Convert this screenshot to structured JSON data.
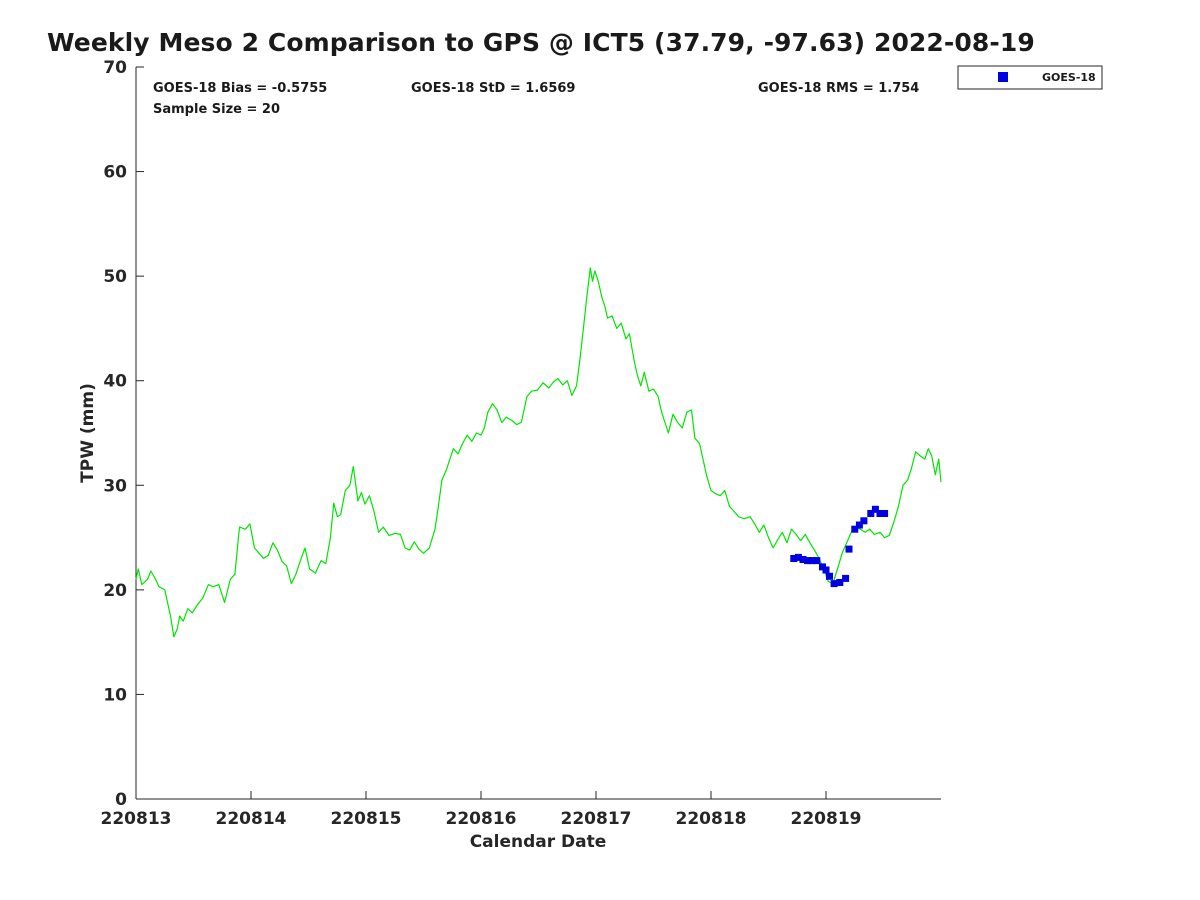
{
  "title": "Weekly Meso 2 Comparison to GPS @ ICT5 (37.79, -97.63) 2022-08-19",
  "stats": {
    "bias": "GOES-18 Bias = -0.5755",
    "std": "GOES-18 StD = 1.6569",
    "rms": "GOES-18 RMS = 1.754",
    "sample": "Sample Size = 20"
  },
  "legend": {
    "label": "GOES-18"
  },
  "colors": {
    "gps_line": "#00e600",
    "goes_marker": "#0000e0",
    "axis": "#262626"
  },
  "chart_data": {
    "type": "line",
    "xlabel": "Calendar Date",
    "ylabel": "TPW (mm)",
    "xlim": [
      0,
      7
    ],
    "ylim": [
      0,
      70
    ],
    "x_tick_values": [
      0,
      1,
      2,
      3,
      4,
      5,
      6
    ],
    "x_tick_labels": [
      "220813",
      "220814",
      "220815",
      "220816",
      "220817",
      "220818",
      "220819"
    ],
    "y_ticks": [
      0,
      10,
      20,
      30,
      40,
      50,
      60,
      70
    ],
    "grid": false,
    "legend_position": "top-right",
    "series": [
      {
        "marker": "line",
        "points": [
          [
            0.0,
            21.0
          ],
          [
            0.02,
            22.0
          ],
          [
            0.05,
            20.5
          ],
          [
            0.1,
            21.0
          ],
          [
            0.13,
            21.8
          ],
          [
            0.17,
            21.0
          ],
          [
            0.2,
            20.3
          ],
          [
            0.25,
            20.0
          ],
          [
            0.28,
            18.5
          ],
          [
            0.3,
            17.5
          ],
          [
            0.33,
            15.5
          ],
          [
            0.36,
            16.3
          ],
          [
            0.38,
            17.5
          ],
          [
            0.41,
            17.0
          ],
          [
            0.45,
            18.2
          ],
          [
            0.49,
            17.8
          ],
          [
            0.53,
            18.5
          ],
          [
            0.58,
            19.2
          ],
          [
            0.63,
            20.5
          ],
          [
            0.67,
            20.3
          ],
          [
            0.72,
            20.5
          ],
          [
            0.77,
            18.8
          ],
          [
            0.82,
            21.0
          ],
          [
            0.86,
            21.5
          ],
          [
            0.9,
            26.0
          ],
          [
            0.95,
            25.8
          ],
          [
            0.99,
            26.3
          ],
          [
            1.03,
            24.0
          ],
          [
            1.07,
            23.5
          ],
          [
            1.11,
            23.0
          ],
          [
            1.15,
            23.3
          ],
          [
            1.19,
            24.5
          ],
          [
            1.23,
            23.8
          ],
          [
            1.27,
            22.7
          ],
          [
            1.31,
            22.3
          ],
          [
            1.35,
            20.6
          ],
          [
            1.39,
            21.5
          ],
          [
            1.43,
            22.8
          ],
          [
            1.47,
            24.0
          ],
          [
            1.51,
            22.0
          ],
          [
            1.56,
            21.6
          ],
          [
            1.61,
            22.8
          ],
          [
            1.65,
            22.5
          ],
          [
            1.69,
            25.0
          ],
          [
            1.72,
            28.3
          ],
          [
            1.75,
            27.0
          ],
          [
            1.78,
            27.2
          ],
          [
            1.82,
            29.5
          ],
          [
            1.86,
            30.0
          ],
          [
            1.89,
            31.8
          ],
          [
            1.93,
            28.5
          ],
          [
            1.96,
            29.3
          ],
          [
            1.99,
            28.2
          ],
          [
            2.03,
            29.0
          ],
          [
            2.07,
            27.5
          ],
          [
            2.11,
            25.5
          ],
          [
            2.15,
            26.0
          ],
          [
            2.2,
            25.2
          ],
          [
            2.25,
            25.4
          ],
          [
            2.3,
            25.3
          ],
          [
            2.34,
            24.0
          ],
          [
            2.38,
            23.8
          ],
          [
            2.42,
            24.6
          ],
          [
            2.46,
            23.9
          ],
          [
            2.5,
            23.5
          ],
          [
            2.55,
            24.0
          ],
          [
            2.6,
            25.8
          ],
          [
            2.63,
            28.0
          ],
          [
            2.66,
            30.5
          ],
          [
            2.7,
            31.5
          ],
          [
            2.73,
            32.5
          ],
          [
            2.76,
            33.5
          ],
          [
            2.8,
            33.0
          ],
          [
            2.84,
            34.0
          ],
          [
            2.88,
            34.8
          ],
          [
            2.92,
            34.2
          ],
          [
            2.96,
            35.0
          ],
          [
            3.0,
            34.8
          ],
          [
            3.03,
            35.5
          ],
          [
            3.06,
            37.0
          ],
          [
            3.1,
            37.8
          ],
          [
            3.14,
            37.2
          ],
          [
            3.18,
            36.0
          ],
          [
            3.22,
            36.5
          ],
          [
            3.27,
            36.2
          ],
          [
            3.31,
            35.8
          ],
          [
            3.35,
            36.0
          ],
          [
            3.4,
            38.5
          ],
          [
            3.44,
            39.0
          ],
          [
            3.49,
            39.1
          ],
          [
            3.54,
            39.8
          ],
          [
            3.59,
            39.3
          ],
          [
            3.63,
            39.9
          ],
          [
            3.67,
            40.2
          ],
          [
            3.71,
            39.6
          ],
          [
            3.75,
            40.0
          ],
          [
            3.79,
            38.6
          ],
          [
            3.83,
            39.5
          ],
          [
            3.86,
            42.0
          ],
          [
            3.89,
            45.0
          ],
          [
            3.92,
            48.0
          ],
          [
            3.95,
            50.8
          ],
          [
            3.97,
            49.5
          ],
          [
            3.99,
            50.5
          ],
          [
            4.02,
            49.5
          ],
          [
            4.05,
            48.0
          ],
          [
            4.08,
            47.0
          ],
          [
            4.1,
            46.0
          ],
          [
            4.14,
            46.2
          ],
          [
            4.18,
            45.0
          ],
          [
            4.22,
            45.5
          ],
          [
            4.26,
            44.0
          ],
          [
            4.29,
            44.5
          ],
          [
            4.33,
            42.0
          ],
          [
            4.36,
            40.5
          ],
          [
            4.39,
            39.5
          ],
          [
            4.42,
            40.8
          ],
          [
            4.46,
            39.0
          ],
          [
            4.5,
            39.2
          ],
          [
            4.54,
            38.5
          ],
          [
            4.57,
            37.0
          ],
          [
            4.6,
            36.0
          ],
          [
            4.63,
            35.0
          ],
          [
            4.67,
            36.8
          ],
          [
            4.71,
            36.0
          ],
          [
            4.75,
            35.5
          ],
          [
            4.79,
            37.0
          ],
          [
            4.83,
            37.2
          ],
          [
            4.86,
            34.5
          ],
          [
            4.9,
            34.0
          ],
          [
            4.93,
            32.5
          ],
          [
            4.96,
            31.0
          ],
          [
            5.0,
            29.5
          ],
          [
            5.04,
            29.2
          ],
          [
            5.08,
            29.0
          ],
          [
            5.12,
            29.5
          ],
          [
            5.16,
            28.0
          ],
          [
            5.2,
            27.5
          ],
          [
            5.24,
            27.0
          ],
          [
            5.29,
            26.8
          ],
          [
            5.34,
            27.0
          ],
          [
            5.38,
            26.3
          ],
          [
            5.42,
            25.5
          ],
          [
            5.46,
            26.2
          ],
          [
            5.5,
            25.0
          ],
          [
            5.54,
            24.0
          ],
          [
            5.58,
            24.8
          ],
          [
            5.62,
            25.5
          ],
          [
            5.66,
            24.5
          ],
          [
            5.7,
            25.8
          ],
          [
            5.74,
            25.3
          ],
          [
            5.78,
            24.7
          ],
          [
            5.82,
            25.3
          ],
          [
            5.86,
            24.5
          ],
          [
            5.9,
            23.8
          ],
          [
            5.94,
            23.0
          ],
          [
            5.98,
            22.0
          ],
          [
            6.02,
            20.8
          ],
          [
            6.06,
            20.6
          ],
          [
            6.1,
            22.0
          ],
          [
            6.14,
            23.5
          ],
          [
            6.18,
            24.5
          ],
          [
            6.22,
            25.5
          ],
          [
            6.26,
            26.0
          ],
          [
            6.3,
            25.8
          ],
          [
            6.34,
            25.5
          ],
          [
            6.38,
            25.8
          ],
          [
            6.42,
            25.3
          ],
          [
            6.47,
            25.5
          ],
          [
            6.51,
            25.0
          ],
          [
            6.55,
            25.2
          ],
          [
            6.59,
            26.5
          ],
          [
            6.63,
            28.0
          ],
          [
            6.67,
            30.0
          ],
          [
            6.71,
            30.5
          ],
          [
            6.74,
            31.5
          ],
          [
            6.78,
            33.2
          ],
          [
            6.82,
            32.8
          ],
          [
            6.86,
            32.5
          ],
          [
            6.89,
            33.5
          ],
          [
            6.92,
            32.8
          ],
          [
            6.95,
            31.0
          ],
          [
            6.98,
            32.5
          ],
          [
            7.0,
            30.3
          ]
        ]
      },
      {
        "name": "GOES-18",
        "marker": "square",
        "points": [
          [
            5.72,
            23.0
          ],
          [
            5.76,
            23.1
          ],
          [
            5.8,
            22.9
          ],
          [
            5.84,
            22.8
          ],
          [
            5.88,
            22.8
          ],
          [
            5.92,
            22.8
          ],
          [
            5.97,
            22.2
          ],
          [
            6.0,
            21.9
          ],
          [
            6.03,
            21.3
          ],
          [
            6.07,
            20.6
          ],
          [
            6.12,
            20.7
          ],
          [
            6.17,
            21.1
          ],
          [
            6.2,
            23.9
          ],
          [
            6.25,
            25.8
          ],
          [
            6.29,
            26.2
          ],
          [
            6.33,
            26.6
          ],
          [
            6.39,
            27.3
          ],
          [
            6.43,
            27.7
          ],
          [
            6.47,
            27.3
          ],
          [
            6.51,
            27.3
          ]
        ]
      }
    ]
  }
}
